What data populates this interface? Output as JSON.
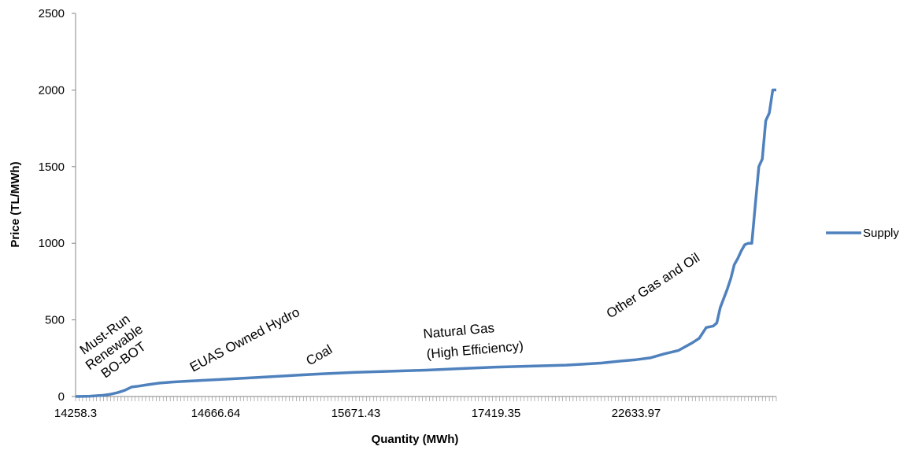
{
  "chart_data": {
    "type": "line",
    "xlabel": "Quantity (MWh)",
    "ylabel": "Price (TL/MWh)",
    "ylim": [
      0,
      2500
    ],
    "y_ticks": [
      "0",
      "500",
      "1000",
      "1500",
      "2000",
      "2500"
    ],
    "x_tick_labels": [
      "14258.3",
      "14666.64",
      "15671.43",
      "17419.35",
      "22633.97"
    ],
    "x_category_count": 200,
    "legend": {
      "position": "right",
      "entries": [
        "Supply"
      ]
    },
    "colors": {
      "series": "#4f81bd",
      "axis": "#868686"
    },
    "series": [
      {
        "name": "Supply",
        "x_position_fraction": [
          0,
          0.02,
          0.04,
          0.05,
          0.06,
          0.07,
          0.08,
          0.09,
          0.1,
          0.12,
          0.14,
          0.16,
          0.2,
          0.25,
          0.3,
          0.35,
          0.4,
          0.45,
          0.5,
          0.55,
          0.6,
          0.65,
          0.7,
          0.72,
          0.75,
          0.78,
          0.8,
          0.82,
          0.84,
          0.86,
          0.88,
          0.89,
          0.9,
          0.91,
          0.915,
          0.92,
          0.93,
          0.935,
          0.94,
          0.945,
          0.95,
          0.955,
          0.96,
          0.965,
          0.97,
          0.975,
          0.98,
          0.985,
          0.99,
          0.995,
          1.0
        ],
        "values": [
          0,
          2,
          8,
          15,
          25,
          40,
          62,
          68,
          75,
          88,
          95,
          100,
          110,
          122,
          135,
          148,
          158,
          165,
          172,
          182,
          192,
          198,
          205,
          210,
          218,
          232,
          240,
          252,
          278,
          300,
          350,
          380,
          450,
          460,
          480,
          580,
          700,
          770,
          860,
          900,
          950,
          990,
          1000,
          1000,
          1250,
          1500,
          1550,
          1800,
          1850,
          2000,
          2000
        ]
      }
    ]
  },
  "annotations": [
    {
      "lines": [
        "Must-Run",
        "Renewable",
        "BO-BOT"
      ]
    },
    {
      "lines": [
        "EUAS Owned Hydro"
      ]
    },
    {
      "lines": [
        "Coal"
      ]
    },
    {
      "lines": [
        "Natural Gas",
        "(High Efficiency)"
      ]
    },
    {
      "lines": [
        "Other Gas and Oil"
      ]
    }
  ]
}
